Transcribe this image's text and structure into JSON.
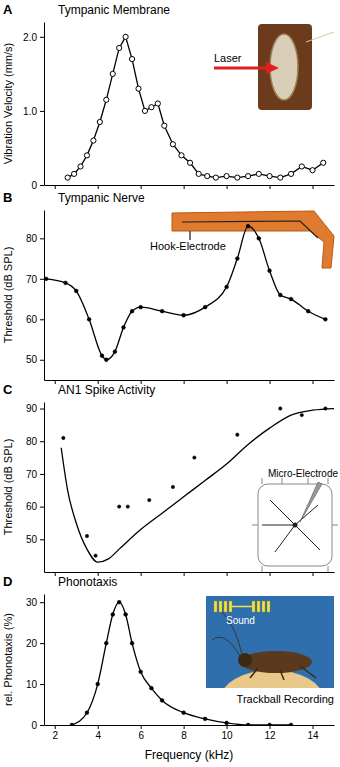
{
  "chart_data": [
    {
      "type": "line",
      "panel_label": "A",
      "title": "Tympanic Membrane",
      "ylabel": "Vibration Velocity (mm/s)",
      "annotations": [
        "Laser"
      ],
      "xlim": [
        1.5,
        15
      ],
      "xticks": [
        2,
        4,
        6,
        8,
        10,
        12,
        14
      ],
      "ylim": [
        0,
        2.2
      ],
      "yticks": [
        0,
        {
          "value": 1,
          "label": "1.0"
        },
        {
          "value": 2,
          "label": "2.0"
        }
      ],
      "grid": false,
      "tick_labels": "y",
      "series": [
        {
          "color": "#000000",
          "marker": "circle-open",
          "line_style": "solid",
          "x": [
            2.6,
            2.9,
            3.2,
            3.5,
            3.8,
            4.1,
            4.4,
            4.7,
            5.0,
            5.3,
            5.6,
            5.9,
            6.2,
            6.5,
            6.8,
            7.1,
            7.5,
            7.9,
            8.3,
            8.7,
            9.1,
            9.5,
            10.0,
            10.5,
            11.0,
            11.5,
            12.0,
            12.5,
            13.0,
            13.5,
            14.0,
            14.5
          ],
          "values": [
            0.1,
            0.15,
            0.25,
            0.4,
            0.6,
            0.85,
            1.15,
            1.5,
            1.85,
            2.0,
            1.7,
            1.3,
            1.0,
            1.05,
            1.1,
            0.8,
            0.55,
            0.4,
            0.3,
            0.15,
            0.12,
            0.1,
            0.12,
            0.1,
            0.12,
            0.15,
            0.12,
            0.1,
            0.15,
            0.25,
            0.2,
            0.3
          ]
        }
      ]
    },
    {
      "type": "line",
      "panel_label": "B",
      "title": "Tympanic Nerve",
      "ylabel": "Threshold (dB SPL)",
      "annotations": [
        "Hook-Electrode"
      ],
      "xlim": [
        1.5,
        15
      ],
      "xticks": [
        2,
        4,
        6,
        8,
        10,
        12,
        14
      ],
      "ylim": [
        45,
        87
      ],
      "yticks": [
        50,
        60,
        70,
        80
      ],
      "grid": false,
      "tick_labels": "y",
      "series": [
        {
          "color": "#000000",
          "marker": "circle",
          "line_style": "solid",
          "x": [
            1.6,
            2.5,
            3.0,
            3.6,
            4.2,
            4.4,
            4.8,
            5.2,
            5.6,
            6.0,
            7.0,
            8.0,
            9.0,
            10.0,
            10.5,
            11.0,
            11.5,
            12.0,
            12.5,
            13.0,
            13.8,
            14.6
          ],
          "values": [
            70,
            69,
            67,
            60,
            51,
            50,
            52,
            58,
            62,
            63,
            62,
            61,
            63,
            68,
            75,
            83,
            80,
            72,
            66,
            65,
            62,
            60
          ]
        }
      ]
    },
    {
      "type": "line",
      "panel_label": "C",
      "title": "AN1 Spike Activity",
      "ylabel": "Threshold (dB SPL)",
      "annotations": [
        "Micro-Electrode"
      ],
      "xlim": [
        1.5,
        15
      ],
      "xticks": [
        2,
        4,
        6,
        8,
        10,
        12,
        14
      ],
      "ylim": [
        40,
        92
      ],
      "yticks": [
        50,
        60,
        70,
        80,
        90
      ],
      "grid": false,
      "tick_labels": "y",
      "series": [
        {
          "type": "scatter",
          "color": "#000000",
          "x": [
            2.4,
            3.5,
            3.9,
            5.0,
            5.4,
            6.4,
            7.5,
            8.5,
            10.5,
            12.5,
            13.5,
            14.6
          ],
          "values": [
            81,
            51,
            45,
            60,
            60,
            62,
            66,
            75,
            82,
            90,
            88,
            90
          ]
        },
        {
          "type": "line",
          "color": "#000000",
          "line_style": "solid",
          "x": [
            2.3,
            2.6,
            3.0,
            3.5,
            4.0,
            4.5,
            5.0,
            6.0,
            7.0,
            8.0,
            9.0,
            10.0,
            11.0,
            12.0,
            13.0,
            14.0,
            15.0
          ],
          "values": [
            78,
            65,
            55,
            47,
            43,
            44,
            47,
            53,
            58,
            63,
            68,
            73,
            79,
            84,
            88,
            89.5,
            90
          ]
        }
      ]
    },
    {
      "type": "line",
      "panel_label": "D",
      "title": "Phonotaxis",
      "ylabel": "rel. Phonotaxis (%)",
      "xlabel": "Frequency (kHz)",
      "annotations": [
        "Sound",
        "Trackball Recording"
      ],
      "xlim": [
        1.5,
        15
      ],
      "xticks": [
        2,
        4,
        6,
        8,
        10,
        12,
        14
      ],
      "ylim": [
        0,
        32
      ],
      "yticks": [
        0,
        10,
        20,
        30
      ],
      "grid": false,
      "series": [
        {
          "color": "#000000",
          "marker": "circle",
          "line_style": "solid",
          "x": [
            2.8,
            3.5,
            4.0,
            4.4,
            4.7,
            5.0,
            5.3,
            5.6,
            6.0,
            6.5,
            7.0,
            8.0,
            9.0,
            10.0,
            11.0,
            12.0,
            13.0
          ],
          "values": [
            0,
            3,
            10,
            20,
            27,
            30,
            27,
            20,
            13,
            9,
            6,
            3,
            1.5,
            0.5,
            0,
            0,
            0
          ]
        }
      ]
    }
  ]
}
